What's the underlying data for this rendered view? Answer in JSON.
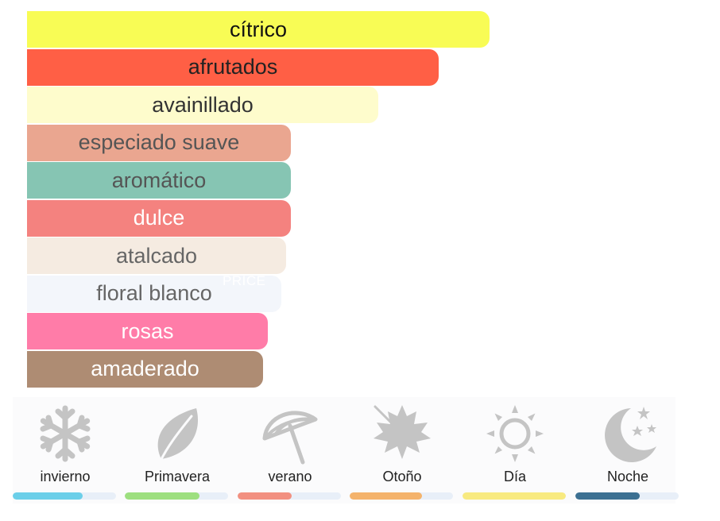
{
  "accords": [
    {
      "label": "cítrico",
      "strength": 1.0,
      "color": "#f8fc55",
      "text_color": "#111111"
    },
    {
      "label": "afrutados",
      "strength": 0.89,
      "color": "#ff5f45",
      "text_color": "#222222"
    },
    {
      "label": "avainillado",
      "strength": 0.76,
      "color": "#fefccc",
      "text_color": "#333333"
    },
    {
      "label": "especiado suave",
      "strength": 0.57,
      "color": "#eaa690",
      "text_color": "#555555"
    },
    {
      "label": "aromático",
      "strength": 0.57,
      "color": "#86c5b3",
      "text_color": "#555555"
    },
    {
      "label": "dulce",
      "strength": 0.57,
      "color": "#f4827f",
      "text_color": "#ffffff"
    },
    {
      "label": "atalcado",
      "strength": 0.56,
      "color": "#f5ebe1",
      "text_color": "#666666"
    },
    {
      "label": "floral blanco",
      "strength": 0.55,
      "color": "#f3f6fb",
      "text_color": "#666666"
    },
    {
      "label": "rosas",
      "strength": 0.52,
      "color": "#ff7ca8",
      "text_color": "#ffffff"
    },
    {
      "label": "amaderado",
      "strength": 0.51,
      "color": "#ae8c73",
      "text_color": "#ffffff"
    }
  ],
  "watermark": "PRICE",
  "seasons": [
    {
      "key": "invierno",
      "label": "invierno",
      "icon": "snowflake-icon",
      "level": 0.68,
      "color": "#6bcfe9"
    },
    {
      "key": "primavera",
      "label": "Primavera",
      "icon": "leaf-icon",
      "level": 0.72,
      "color": "#9ddf7f"
    },
    {
      "key": "verano",
      "label": "verano",
      "icon": "umbrella-icon",
      "level": 0.52,
      "color": "#f29080"
    },
    {
      "key": "otono",
      "label": "Otoño",
      "icon": "maple-leaf-icon",
      "level": 0.7,
      "color": "#f4b36b"
    },
    {
      "key": "dia",
      "label": "Día",
      "icon": "sun-icon",
      "level": 1.0,
      "color": "#f8ea80"
    },
    {
      "key": "noche",
      "label": "Noche",
      "icon": "moon-stars-icon",
      "level": 0.62,
      "color": "#3c7092"
    }
  ]
}
